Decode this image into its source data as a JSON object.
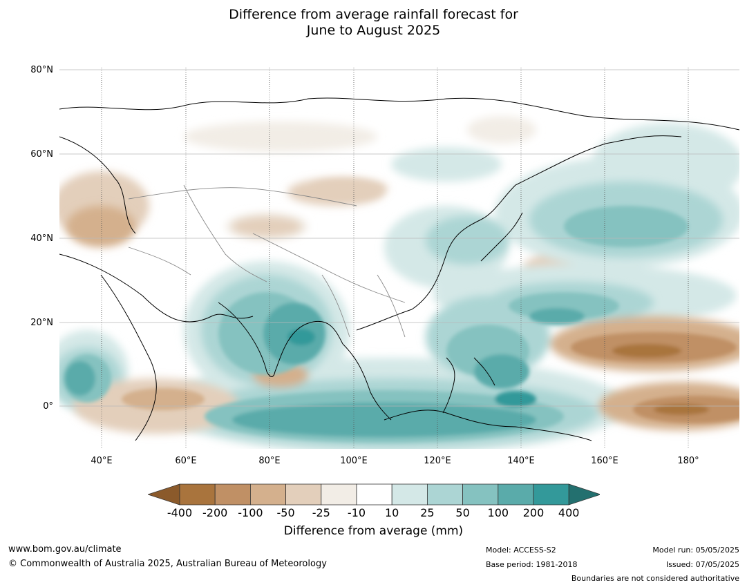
{
  "title_line1": "Difference from average rainfall forecast for",
  "title_line2": "June to August 2025",
  "lat_labels": [
    "80°N",
    "60°N",
    "40°N",
    "20°N",
    "0°"
  ],
  "lon_labels": [
    "40°E",
    "60°E",
    "80°E",
    "100°E",
    "120°E",
    "140°E",
    "160°E",
    "180°"
  ],
  "colorbar": {
    "ticks": [
      "-400",
      "-200",
      "-100",
      "-50",
      "-25",
      "-10",
      "10",
      "25",
      "50",
      "100",
      "200",
      "400"
    ],
    "colors": [
      "#8b5a2b",
      "#a9743d",
      "#c09065",
      "#d4b08d",
      "#e3cfbb",
      "#f2ede6",
      "#ffffff",
      "#d4e8e7",
      "#acd5d4",
      "#85c2c0",
      "#5aabaa",
      "#33999a",
      "#23706f"
    ],
    "label": "Difference from average (mm)"
  },
  "footer": {
    "url": "www.bom.gov.au/climate",
    "copyright": "© Commonwealth of Australia 2025, Australian Bureau of Meteorology",
    "model": "Model: ACCESS-S2",
    "base_period": "Base period: 1981-2018",
    "model_run": "Model run: 05/05/2025",
    "issued": "Issued: 07/05/2025",
    "disclaimer": "Boundaries are not considered authoritative"
  }
}
